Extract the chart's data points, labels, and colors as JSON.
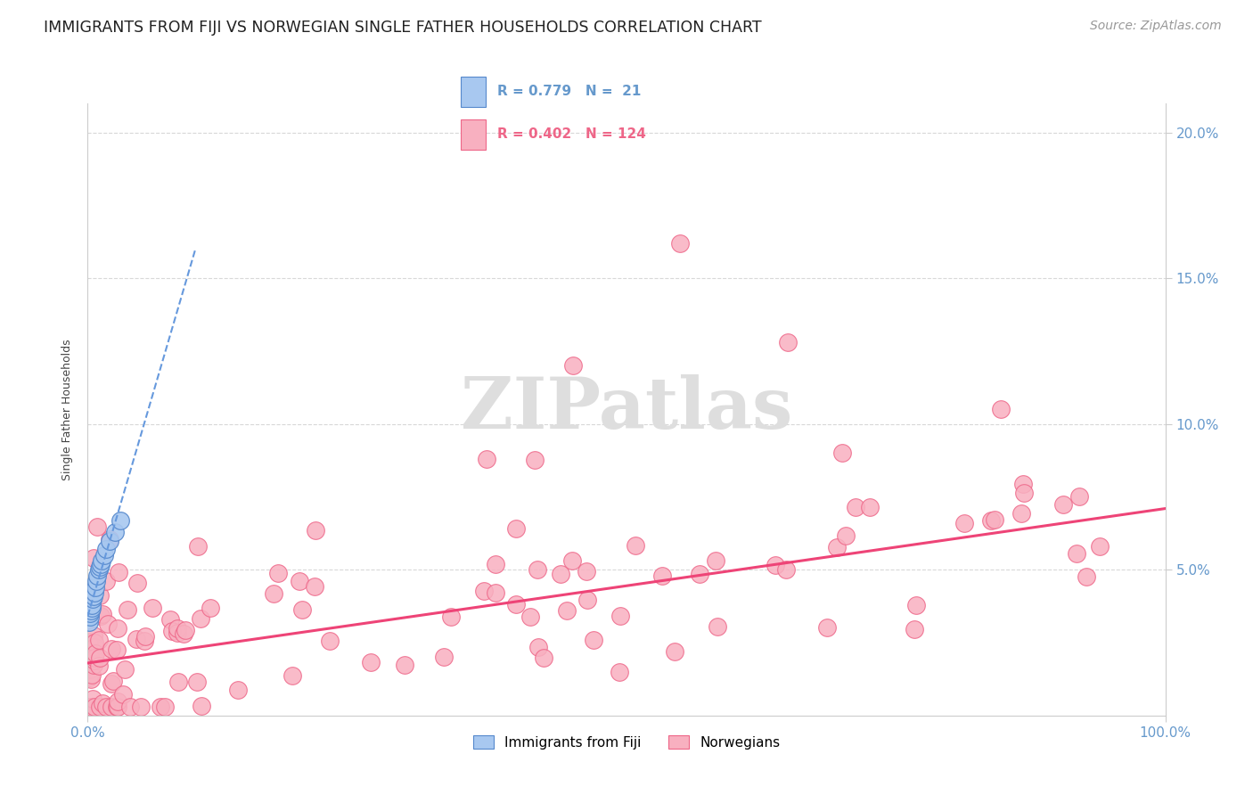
{
  "title": "IMMIGRANTS FROM FIJI VS NORWEGIAN SINGLE FATHER HOUSEHOLDS CORRELATION CHART",
  "source": "Source: ZipAtlas.com",
  "ylabel": "Single Father Households",
  "watermark": "ZIPatlas",
  "fiji_color": "#a8c8f0",
  "fiji_edge_color": "#5588cc",
  "fiji_line_color": "#6699dd",
  "norwegian_color": "#f8b0c0",
  "norwegian_edge_color": "#ee6688",
  "norwegian_line_color": "#ee4477",
  "background_color": "#ffffff",
  "grid_color": "#d8d8d8",
  "axis_color": "#6699cc",
  "xlim": [
    0,
    100
  ],
  "ylim": [
    0,
    21
  ],
  "title_fontsize": 12.5,
  "source_fontsize": 10,
  "axis_label_fontsize": 9,
  "tick_fontsize": 11
}
